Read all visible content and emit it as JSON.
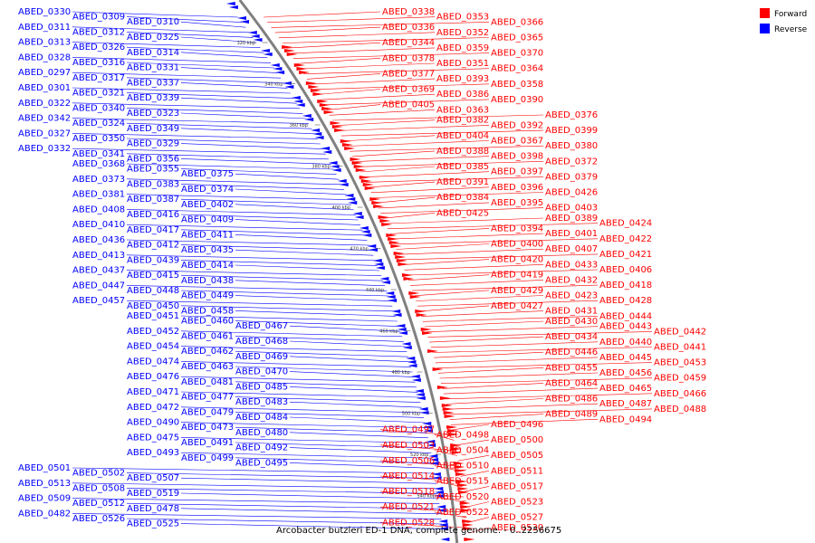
{
  "caption": "Arcobacter butzleri ED-1 DNA, complete genome. - 0..2256675",
  "colors": {
    "forward": "#ff0000",
    "reverse": "#0000ff",
    "backbone": "#808080",
    "text": "#000000"
  },
  "legend": [
    {
      "label": "Forward",
      "color": "#ff0000"
    },
    {
      "label": "Reverse",
      "color": "#0000ff"
    }
  ],
  "ticks": [
    "320 kbp",
    "340 kbp",
    "360 kbp",
    "380 kbp",
    "400 kbp",
    "420 kbp",
    "440 kbp",
    "460 kbp",
    "480 kbp",
    "500 kbp",
    "520 kbp",
    "540 kbp"
  ],
  "forward_genes": [
    "ABED_0338",
    "ABED_0353",
    "ABED_0366",
    "ABED_0336",
    "ABED_0352",
    "ABED_0365",
    "ABED_0344",
    "ABED_0359",
    "ABED_0370",
    "ABED_0378",
    "ABED_0351",
    "ABED_0364",
    "ABED_0377",
    "ABED_0393",
    "ABED_0358",
    "ABED_0369",
    "ABED_0386",
    "ABED_0390",
    "ABED_0405",
    "ABED_0363",
    "ABED_0376",
    "ABED_0382",
    "ABED_0392",
    "ABED_0399",
    "ABED_0404",
    "ABED_0367",
    "ABED_0380",
    "ABED_0388",
    "ABED_0398",
    "ABED_0372",
    "ABED_0385",
    "ABED_0397",
    "ABED_0379",
    "ABED_0391",
    "ABED_0396",
    "ABED_0426",
    "ABED_0384",
    "ABED_0395",
    "ABED_0403",
    "ABED_0425",
    "ABED_0389",
    "ABED_0424",
    "ABED_0394",
    "ABED_0401",
    "ABED_0422",
    "ABED_0400",
    "ABED_0407",
    "ABED_0421",
    "ABED_0420",
    "ABED_0433",
    "ABED_0406",
    "ABED_0419",
    "ABED_0432",
    "ABED_0418",
    "ABED_0429",
    "ABED_0423",
    "ABED_0428",
    "ABED_0427",
    "ABED_0431",
    "ABED_0444",
    "ABED_0430",
    "ABED_0443",
    "ABED_0442",
    "ABED_0434",
    "ABED_0440",
    "ABED_0441",
    "ABED_0446",
    "ABED_0445",
    "ABED_0453",
    "ABED_0455",
    "ABED_0456",
    "ABED_0459",
    "ABED_0464",
    "ABED_0465",
    "ABED_0466",
    "ABED_0486",
    "ABED_0487",
    "ABED_0488",
    "ABED_0489",
    "ABED_0494",
    "ABED_0496",
    "ABED_0497",
    "ABED_0498",
    "ABED_0500",
    "ABED_0503",
    "ABED_0504",
    "ABED_0505",
    "ABED_0506",
    "ABED_0510",
    "ABED_0511",
    "ABED_0514",
    "ABED_0515",
    "ABED_0517",
    "ABED_0518",
    "ABED_0520",
    "ABED_0523",
    "ABED_0521",
    "ABED_0522",
    "ABED_0527",
    "ABED_0528",
    "ABED_0530"
  ],
  "reverse_genes": [
    "ABED_0330",
    "ABED_0309",
    "ABED_0310",
    "ABED_0311",
    "ABED_0312",
    "ABED_0325",
    "ABED_0313",
    "ABED_0326",
    "ABED_0314",
    "ABED_0328",
    "ABED_0316",
    "ABED_0331",
    "ABED_0297",
    "ABED_0317",
    "ABED_0337",
    "ABED_0301",
    "ABED_0321",
    "ABED_0339",
    "ABED_0322",
    "ABED_0340",
    "ABED_0323",
    "ABED_0342",
    "ABED_0324",
    "ABED_0349",
    "ABED_0327",
    "ABED_0350",
    "ABED_0329",
    "ABED_0332",
    "ABED_0341",
    "ABED_0356",
    "ABED_0368",
    "ABED_0355",
    "ABED_0375",
    "ABED_0373",
    "ABED_0383",
    "ABED_0374",
    "ABED_0381",
    "ABED_0387",
    "ABED_0402",
    "ABED_0408",
    "ABED_0416",
    "ABED_0409",
    "ABED_0410",
    "ABED_0417",
    "ABED_0411",
    "ABED_0436",
    "ABED_0412",
    "ABED_0435",
    "ABED_0413",
    "ABED_0439",
    "ABED_0414",
    "ABED_0437",
    "ABED_0415",
    "ABED_0438",
    "ABED_0447",
    "ABED_0448",
    "ABED_0449",
    "ABED_0457",
    "ABED_0450",
    "ABED_0458",
    "ABED_0451",
    "ABED_0460",
    "ABED_0467",
    "ABED_0452",
    "ABED_0461",
    "ABED_0468",
    "ABED_0454",
    "ABED_0462",
    "ABED_0469",
    "ABED_0474",
    "ABED_0463",
    "ABED_0470",
    "ABED_0476",
    "ABED_0481",
    "ABED_0485",
    "ABED_0471",
    "ABED_0477",
    "ABED_0483",
    "ABED_0472",
    "ABED_0479",
    "ABED_0484",
    "ABED_0490",
    "ABED_0473",
    "ABED_0480",
    "ABED_0475",
    "ABED_0491",
    "ABED_0492",
    "ABED_0493",
    "ABED_0499",
    "ABED_0495",
    "ABED_0501",
    "ABED_0502",
    "ABED_0507",
    "ABED_0513",
    "ABED_0508",
    "ABED_0519",
    "ABED_0509",
    "ABED_0512",
    "ABED_0478",
    "ABED_0482",
    "ABED_0526",
    "ABED_0525"
  ]
}
